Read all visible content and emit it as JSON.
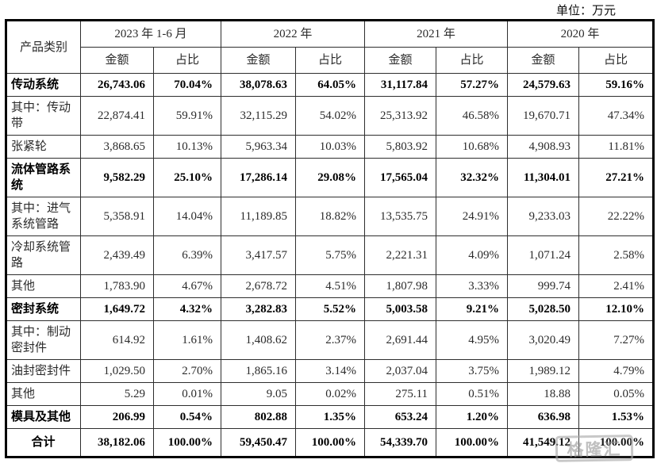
{
  "unit_label": "单位：万元",
  "watermark_text": "格隆汇",
  "table": {
    "category_header": "产品类别",
    "amount_header": "金额",
    "ratio_header": "占比",
    "year_groups": [
      {
        "label": "2023 年 1-6 月"
      },
      {
        "label": "2022 年"
      },
      {
        "label": "2021 年"
      },
      {
        "label": "2020 年"
      }
    ],
    "rows": [
      {
        "label": "传动系统",
        "bold": true,
        "values": [
          "26,743.06",
          "70.04%",
          "38,078.63",
          "64.05%",
          "31,117.84",
          "57.27%",
          "24,579.63",
          "59.16%"
        ]
      },
      {
        "label": "其中：传动带",
        "bold": false,
        "values": [
          "22,874.41",
          "59.91%",
          "32,115.29",
          "54.02%",
          "25,313.92",
          "46.58%",
          "19,670.71",
          "47.34%"
        ]
      },
      {
        "label": "张紧轮",
        "bold": false,
        "values": [
          "3,868.65",
          "10.13%",
          "5,963.34",
          "10.03%",
          "5,803.92",
          "10.68%",
          "4,908.93",
          "11.81%"
        ]
      },
      {
        "label": "流体管路系统",
        "bold": true,
        "values": [
          "9,582.29",
          "25.10%",
          "17,286.14",
          "29.08%",
          "17,565.04",
          "32.32%",
          "11,304.01",
          "27.21%"
        ]
      },
      {
        "label": "其中：进气系统管路",
        "bold": false,
        "values": [
          "5,358.91",
          "14.04%",
          "11,189.85",
          "18.82%",
          "13,535.75",
          "24.91%",
          "9,233.03",
          "22.22%"
        ]
      },
      {
        "label": "冷却系统管路",
        "bold": false,
        "values": [
          "2,439.49",
          "6.39%",
          "3,417.57",
          "5.75%",
          "2,221.31",
          "4.09%",
          "1,071.24",
          "2.58%"
        ]
      },
      {
        "label": "其他",
        "bold": false,
        "values": [
          "1,783.90",
          "4.67%",
          "2,678.72",
          "4.51%",
          "1,807.98",
          "3.33%",
          "999.74",
          "2.41%"
        ]
      },
      {
        "label": "密封系统",
        "bold": true,
        "values": [
          "1,649.72",
          "4.32%",
          "3,282.83",
          "5.52%",
          "5,003.58",
          "9.21%",
          "5,028.50",
          "12.10%"
        ]
      },
      {
        "label": "其中：制动密封件",
        "bold": false,
        "values": [
          "614.92",
          "1.61%",
          "1,408.62",
          "2.37%",
          "2,691.44",
          "4.95%",
          "3,020.49",
          "7.27%"
        ]
      },
      {
        "label": "油封密封件",
        "bold": false,
        "values": [
          "1,029.50",
          "2.70%",
          "1,865.16",
          "3.14%",
          "2,037.04",
          "3.75%",
          "1,989.12",
          "4.79%"
        ]
      },
      {
        "label": "其他",
        "bold": false,
        "values": [
          "5.29",
          "0.01%",
          "9.05",
          "0.02%",
          "275.11",
          "0.51%",
          "18.88",
          "0.05%"
        ]
      },
      {
        "label": "模具及其他",
        "bold": true,
        "values": [
          "206.99",
          "0.54%",
          "802.88",
          "1.35%",
          "653.24",
          "1.20%",
          "636.98",
          "1.53%"
        ]
      },
      {
        "label": "合计",
        "bold": true,
        "center": true,
        "total": true,
        "values": [
          "38,182.06",
          "100.00%",
          "59,450.47",
          "100.00%",
          "54,339.70",
          "100.00%",
          "41,549.12",
          "100.00%"
        ]
      }
    ]
  }
}
